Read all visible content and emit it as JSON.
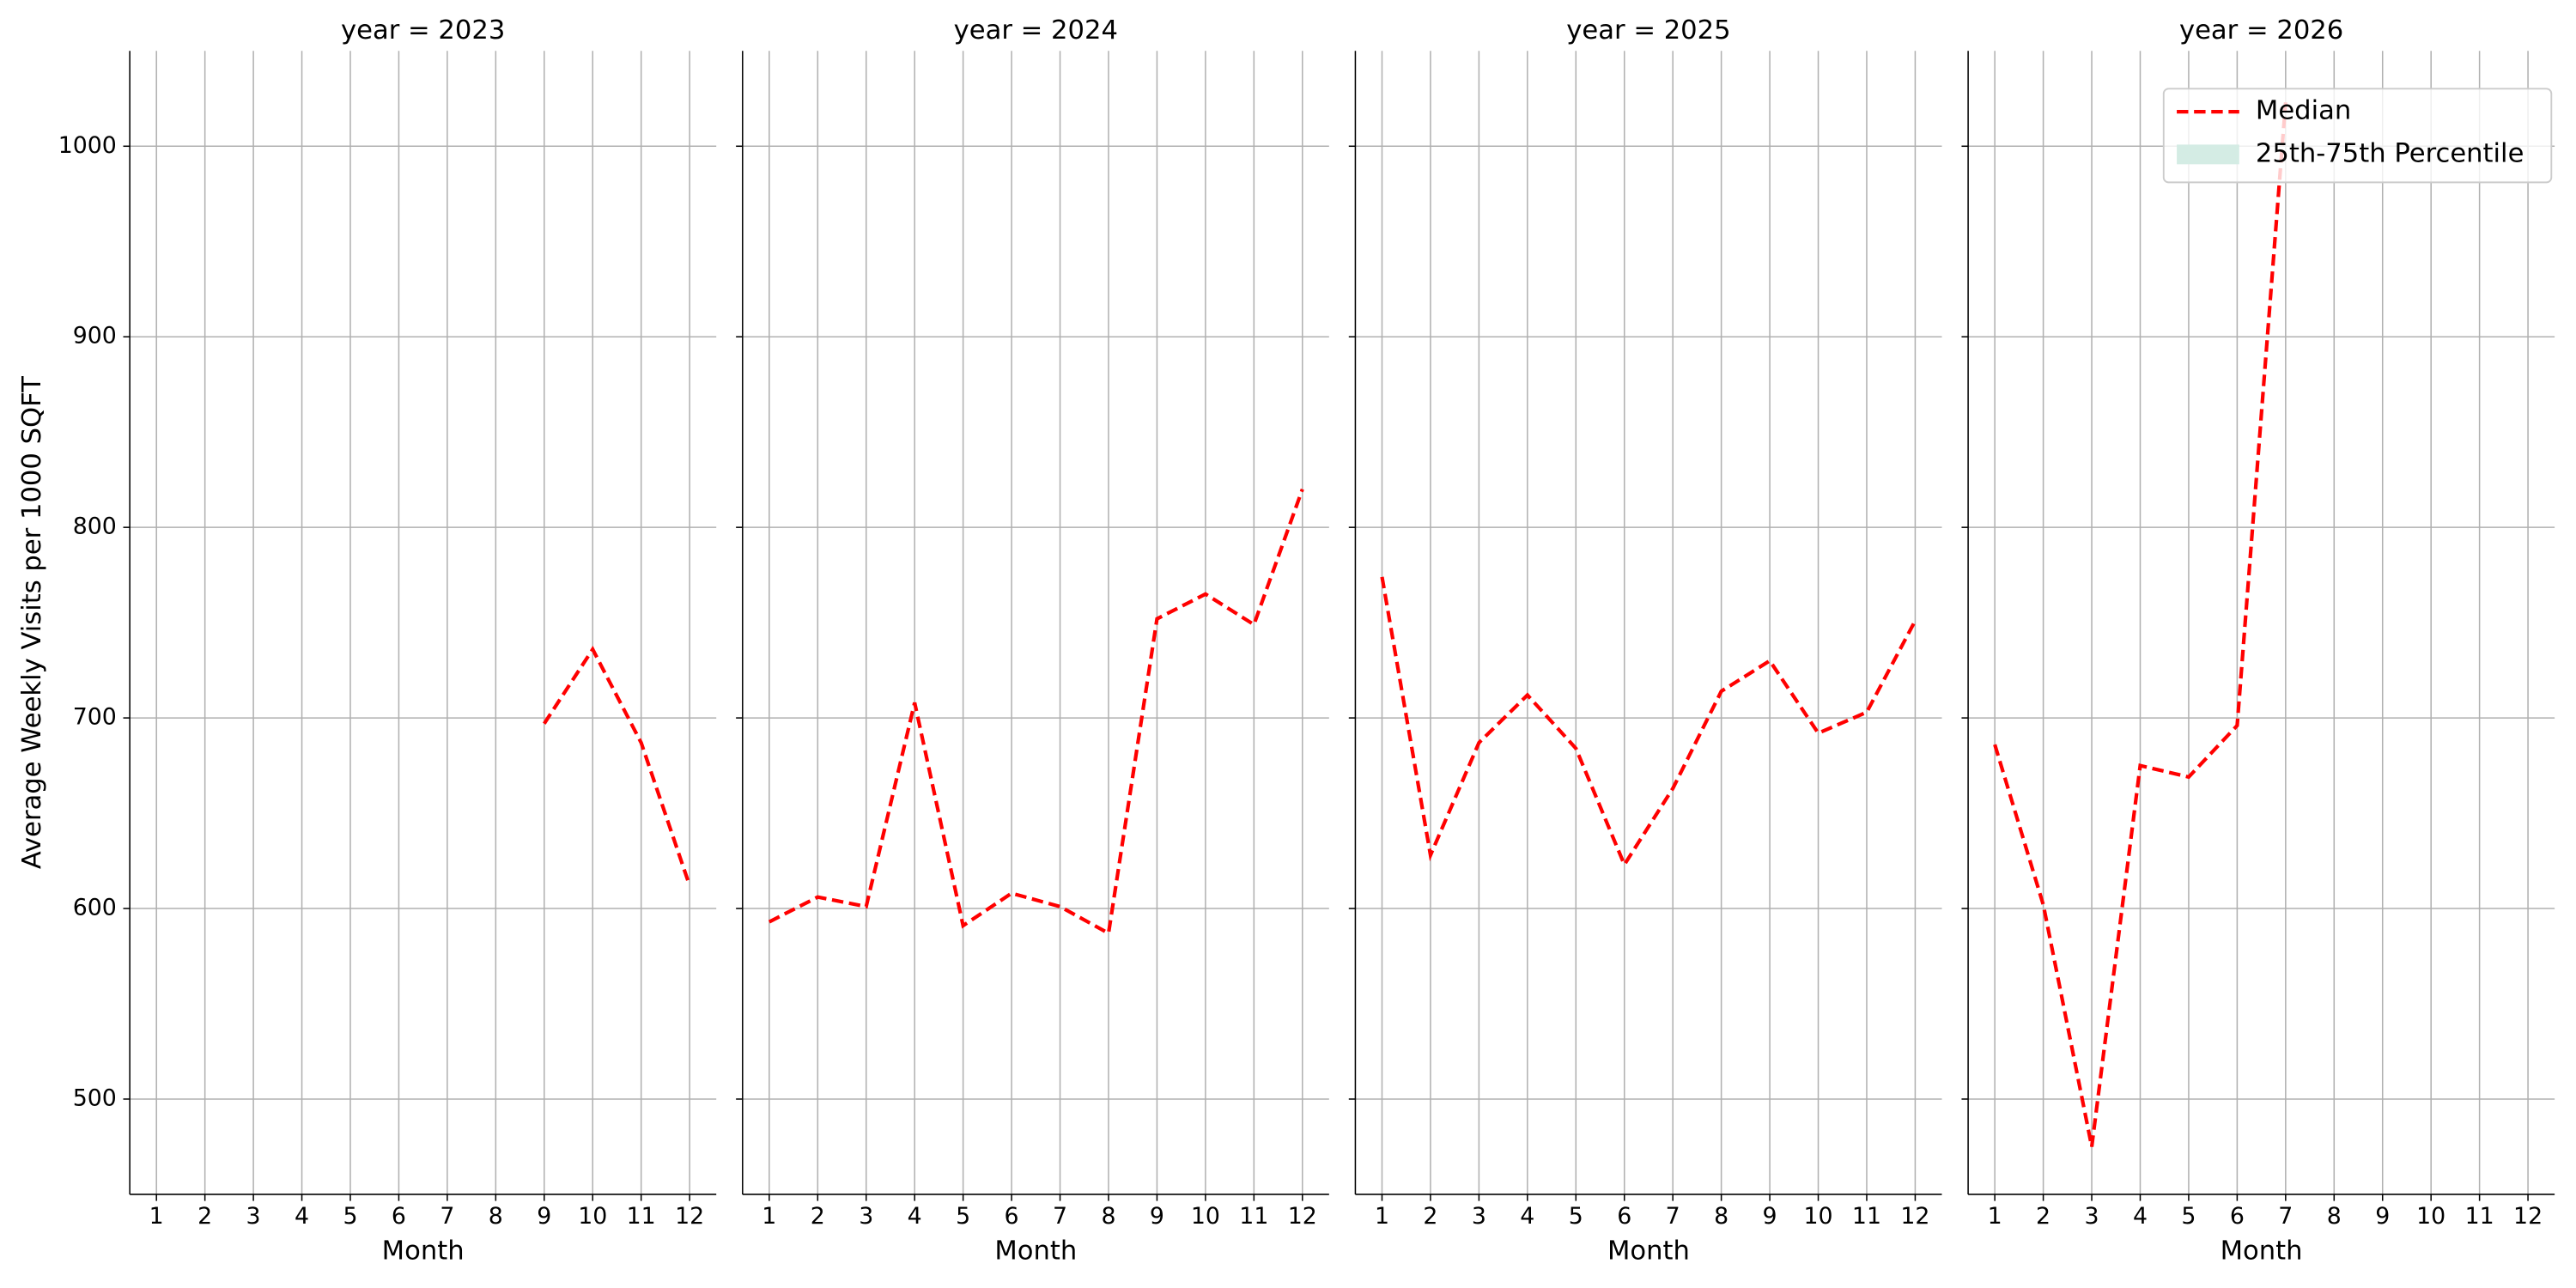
{
  "chart_data": [
    {
      "type": "line",
      "title": "year = 2023",
      "xlabel": "Month",
      "ylabel": "Average Weekly Visits per 1000 SQFT",
      "x": [
        1,
        2,
        3,
        4,
        5,
        6,
        7,
        8,
        9,
        10,
        11,
        12
      ],
      "series": [
        {
          "name": "Median",
          "color": "#ff0000",
          "values": [
            null,
            null,
            null,
            null,
            null,
            null,
            null,
            null,
            697,
            736,
            687,
            612
          ]
        }
      ],
      "xlim": [
        0.45,
        12.55
      ],
      "xticks": [
        1,
        2,
        3,
        4,
        5,
        6,
        7,
        8,
        9,
        10,
        11,
        12
      ],
      "ylim": [
        450,
        1050
      ],
      "yticks": [
        500,
        600,
        700,
        800,
        900,
        1000
      ],
      "grid": true
    },
    {
      "type": "line",
      "title": "year = 2024",
      "xlabel": "Month",
      "x": [
        1,
        2,
        3,
        4,
        5,
        6,
        7,
        8,
        9,
        10,
        11,
        12
      ],
      "series": [
        {
          "name": "Median",
          "color": "#ff0000",
          "values": [
            593,
            606,
            601,
            708,
            591,
            608,
            601,
            587,
            752,
            765,
            749,
            820
          ]
        }
      ],
      "xlim": [
        0.45,
        12.55
      ],
      "xticks": [
        1,
        2,
        3,
        4,
        5,
        6,
        7,
        8,
        9,
        10,
        11,
        12
      ],
      "ylim": [
        450,
        1050
      ],
      "yticks": [
        500,
        600,
        700,
        800,
        900,
        1000
      ],
      "grid": true
    },
    {
      "type": "line",
      "title": "year = 2025",
      "xlabel": "Month",
      "x": [
        1,
        2,
        3,
        4,
        5,
        6,
        7,
        8,
        9,
        10,
        11,
        12
      ],
      "series": [
        {
          "name": "Median",
          "color": "#ff0000",
          "values": [
            774,
            628,
            687,
            712,
            684,
            623,
            663,
            714,
            730,
            692,
            703,
            751
          ]
        }
      ],
      "xlim": [
        0.45,
        12.55
      ],
      "xticks": [
        1,
        2,
        3,
        4,
        5,
        6,
        7,
        8,
        9,
        10,
        11,
        12
      ],
      "ylim": [
        450,
        1050
      ],
      "yticks": [
        500,
        600,
        700,
        800,
        900,
        1000
      ],
      "grid": true
    },
    {
      "type": "line",
      "title": "year = 2026",
      "xlabel": "Month",
      "x": [
        1,
        2,
        3,
        4,
        5,
        6,
        7,
        8,
        9,
        10,
        11,
        12
      ],
      "series": [
        {
          "name": "Median",
          "color": "#ff0000",
          "values": [
            686,
            602,
            475,
            675,
            669,
            696,
            1023,
            null,
            null,
            null,
            null,
            null
          ]
        }
      ],
      "xlim": [
        0.45,
        12.55
      ],
      "xticks": [
        1,
        2,
        3,
        4,
        5,
        6,
        7,
        8,
        9,
        10,
        11,
        12
      ],
      "ylim": [
        450,
        1050
      ],
      "yticks": [
        500,
        600,
        700,
        800,
        900,
        1000
      ],
      "grid": true,
      "legend": "upper right",
      "band": {
        "name": "25th-75th Percentile",
        "color": "#d4ece4"
      }
    }
  ]
}
